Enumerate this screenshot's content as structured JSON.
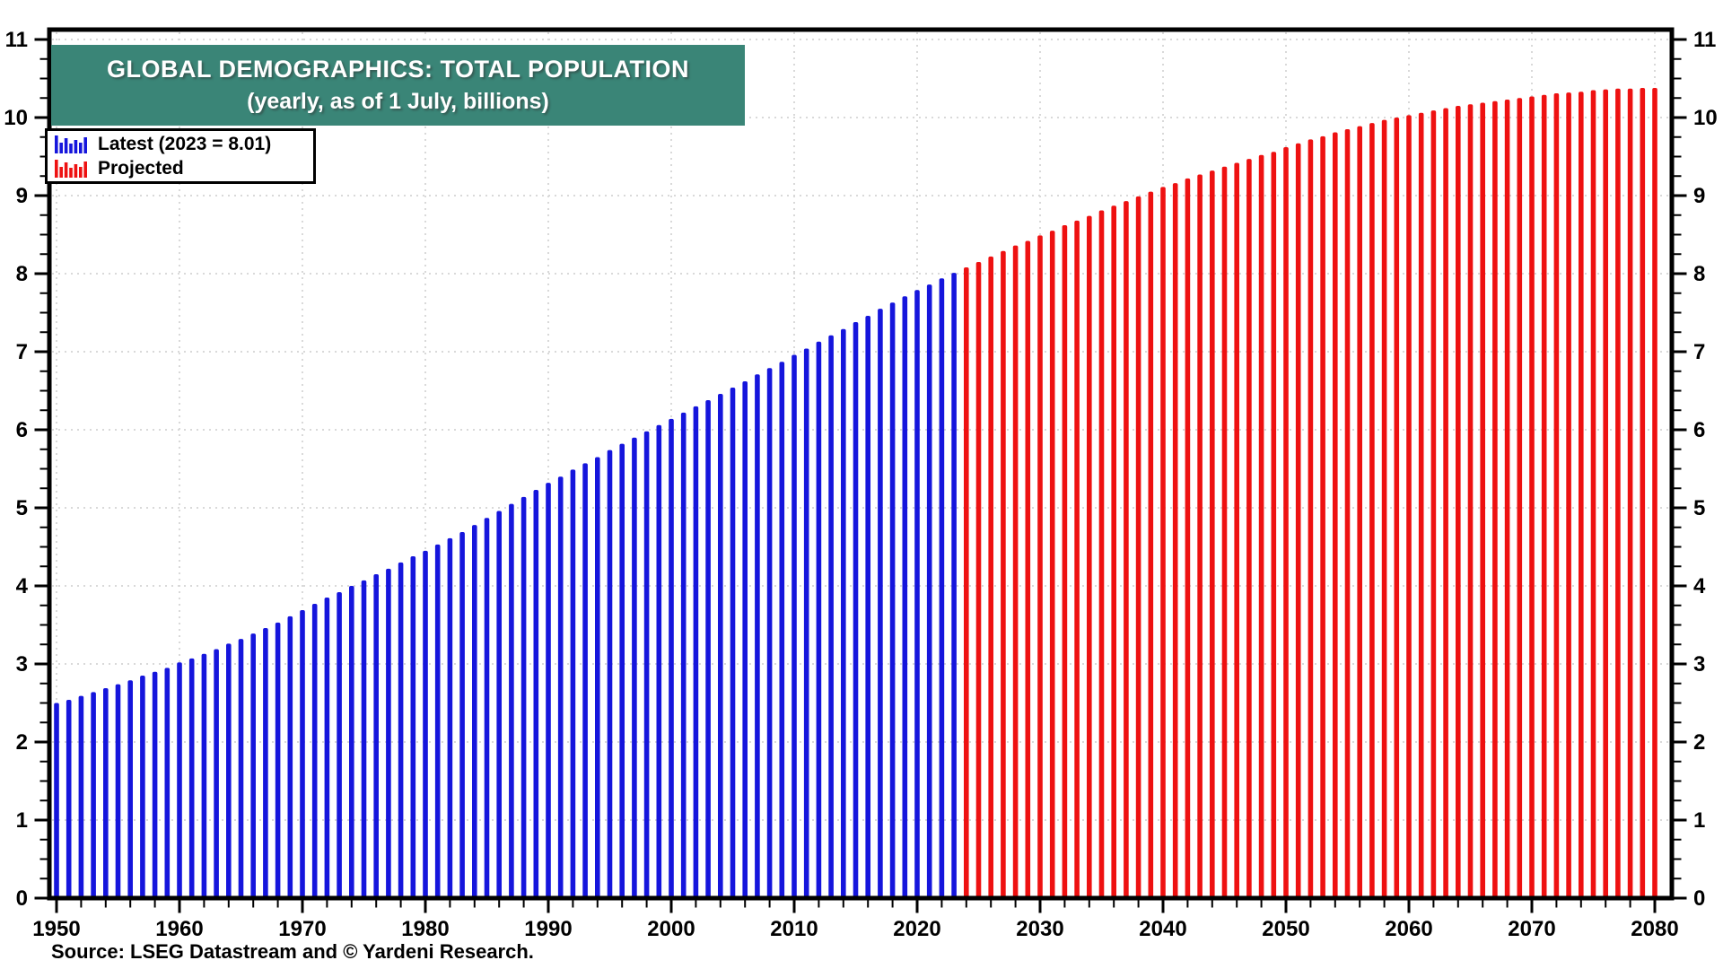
{
  "header": {
    "title": "GLOBAL DEMOGRAPHICS: TOTAL POPULATION",
    "subtitle": "(yearly, as of 1 July, billions)"
  },
  "legend": [
    {
      "key": "latest",
      "label": "Latest (2023 = 8.01)",
      "color": "#1515DC"
    },
    {
      "key": "projected",
      "label": "Projected",
      "color": "#EE1111"
    }
  ],
  "source_line": "Source: LSEG Datastream and © Yardeni Research.",
  "colors": {
    "title_bg": "#3A8577",
    "title_text": "#FFFFFF",
    "latest_bar": "#1515DC",
    "projected_bar": "#EE1111",
    "grid": "#D9D9D9",
    "axis": "#000000",
    "background": "#FFFFFF"
  },
  "chart_data": {
    "type": "bar",
    "title": "GLOBAL DEMOGRAPHICS: TOTAL POPULATION",
    "subtitle": "(yearly, as of 1 July, billions)",
    "unit": "billions, as of 1 July",
    "years": {
      "start": 1950,
      "end": 2080,
      "step": 1
    },
    "xlim": [
      1950,
      2080
    ],
    "ylim": [
      0,
      11
    ],
    "x_ticks_major": [
      1950,
      1960,
      1970,
      1980,
      1990,
      2000,
      2010,
      2020,
      2030,
      2040,
      2050,
      2060,
      2070,
      2080
    ],
    "x_tick_labels": [
      "1950",
      "1960",
      "1970",
      "1980",
      "1990",
      "2000",
      "2010",
      "2020",
      "2030",
      "2040",
      "2050",
      "2060",
      "2070",
      "2080"
    ],
    "x_minor_step": 2,
    "y_ticks_major": [
      0,
      1,
      2,
      3,
      4,
      5,
      6,
      7,
      8,
      9,
      10,
      11
    ],
    "y_tick_labels": [
      "0",
      "1",
      "2",
      "3",
      "4",
      "5",
      "6",
      "7",
      "8",
      "9",
      "10",
      "11"
    ],
    "y_minor_step": 0.25,
    "grid": "dotted horizontal at integers and vertical at decades",
    "legend_position": "top-left",
    "series": [
      {
        "name": "Latest (2023 = 8.01)",
        "color": "#1515DC",
        "start_year": 1950,
        "end_year": 2023,
        "values": [
          2.5,
          2.54,
          2.59,
          2.64,
          2.69,
          2.74,
          2.79,
          2.85,
          2.9,
          2.95,
          3.02,
          3.07,
          3.13,
          3.19,
          3.26,
          3.32,
          3.39,
          3.46,
          3.53,
          3.61,
          3.69,
          3.77,
          3.85,
          3.92,
          4.0,
          4.07,
          4.15,
          4.22,
          4.3,
          4.38,
          4.45,
          4.53,
          4.61,
          4.69,
          4.78,
          4.87,
          4.96,
          5.05,
          5.14,
          5.23,
          5.32,
          5.4,
          5.49,
          5.57,
          5.65,
          5.74,
          5.82,
          5.9,
          5.98,
          6.06,
          6.14,
          6.22,
          6.3,
          6.38,
          6.46,
          6.54,
          6.62,
          6.71,
          6.79,
          6.87,
          6.96,
          7.04,
          7.13,
          7.21,
          7.29,
          7.38,
          7.46,
          7.55,
          7.63,
          7.71,
          7.79,
          7.86,
          7.94,
          8.01
        ]
      },
      {
        "name": "Projected",
        "color": "#EE1111",
        "start_year": 2024,
        "end_year": 2080,
        "values": [
          8.08,
          8.15,
          8.22,
          8.29,
          8.36,
          8.42,
          8.49,
          8.55,
          8.62,
          8.68,
          8.74,
          8.81,
          8.87,
          8.93,
          8.99,
          9.05,
          9.11,
          9.16,
          9.22,
          9.27,
          9.32,
          9.37,
          9.42,
          9.47,
          9.52,
          9.56,
          9.62,
          9.67,
          9.72,
          9.76,
          9.81,
          9.85,
          9.89,
          9.93,
          9.97,
          10.0,
          10.03,
          10.06,
          10.09,
          10.12,
          10.15,
          10.17,
          10.19,
          10.21,
          10.23,
          10.25,
          10.27,
          10.29,
          10.31,
          10.32,
          10.33,
          10.35,
          10.36,
          10.37,
          10.37,
          10.38,
          10.38
        ]
      }
    ]
  }
}
